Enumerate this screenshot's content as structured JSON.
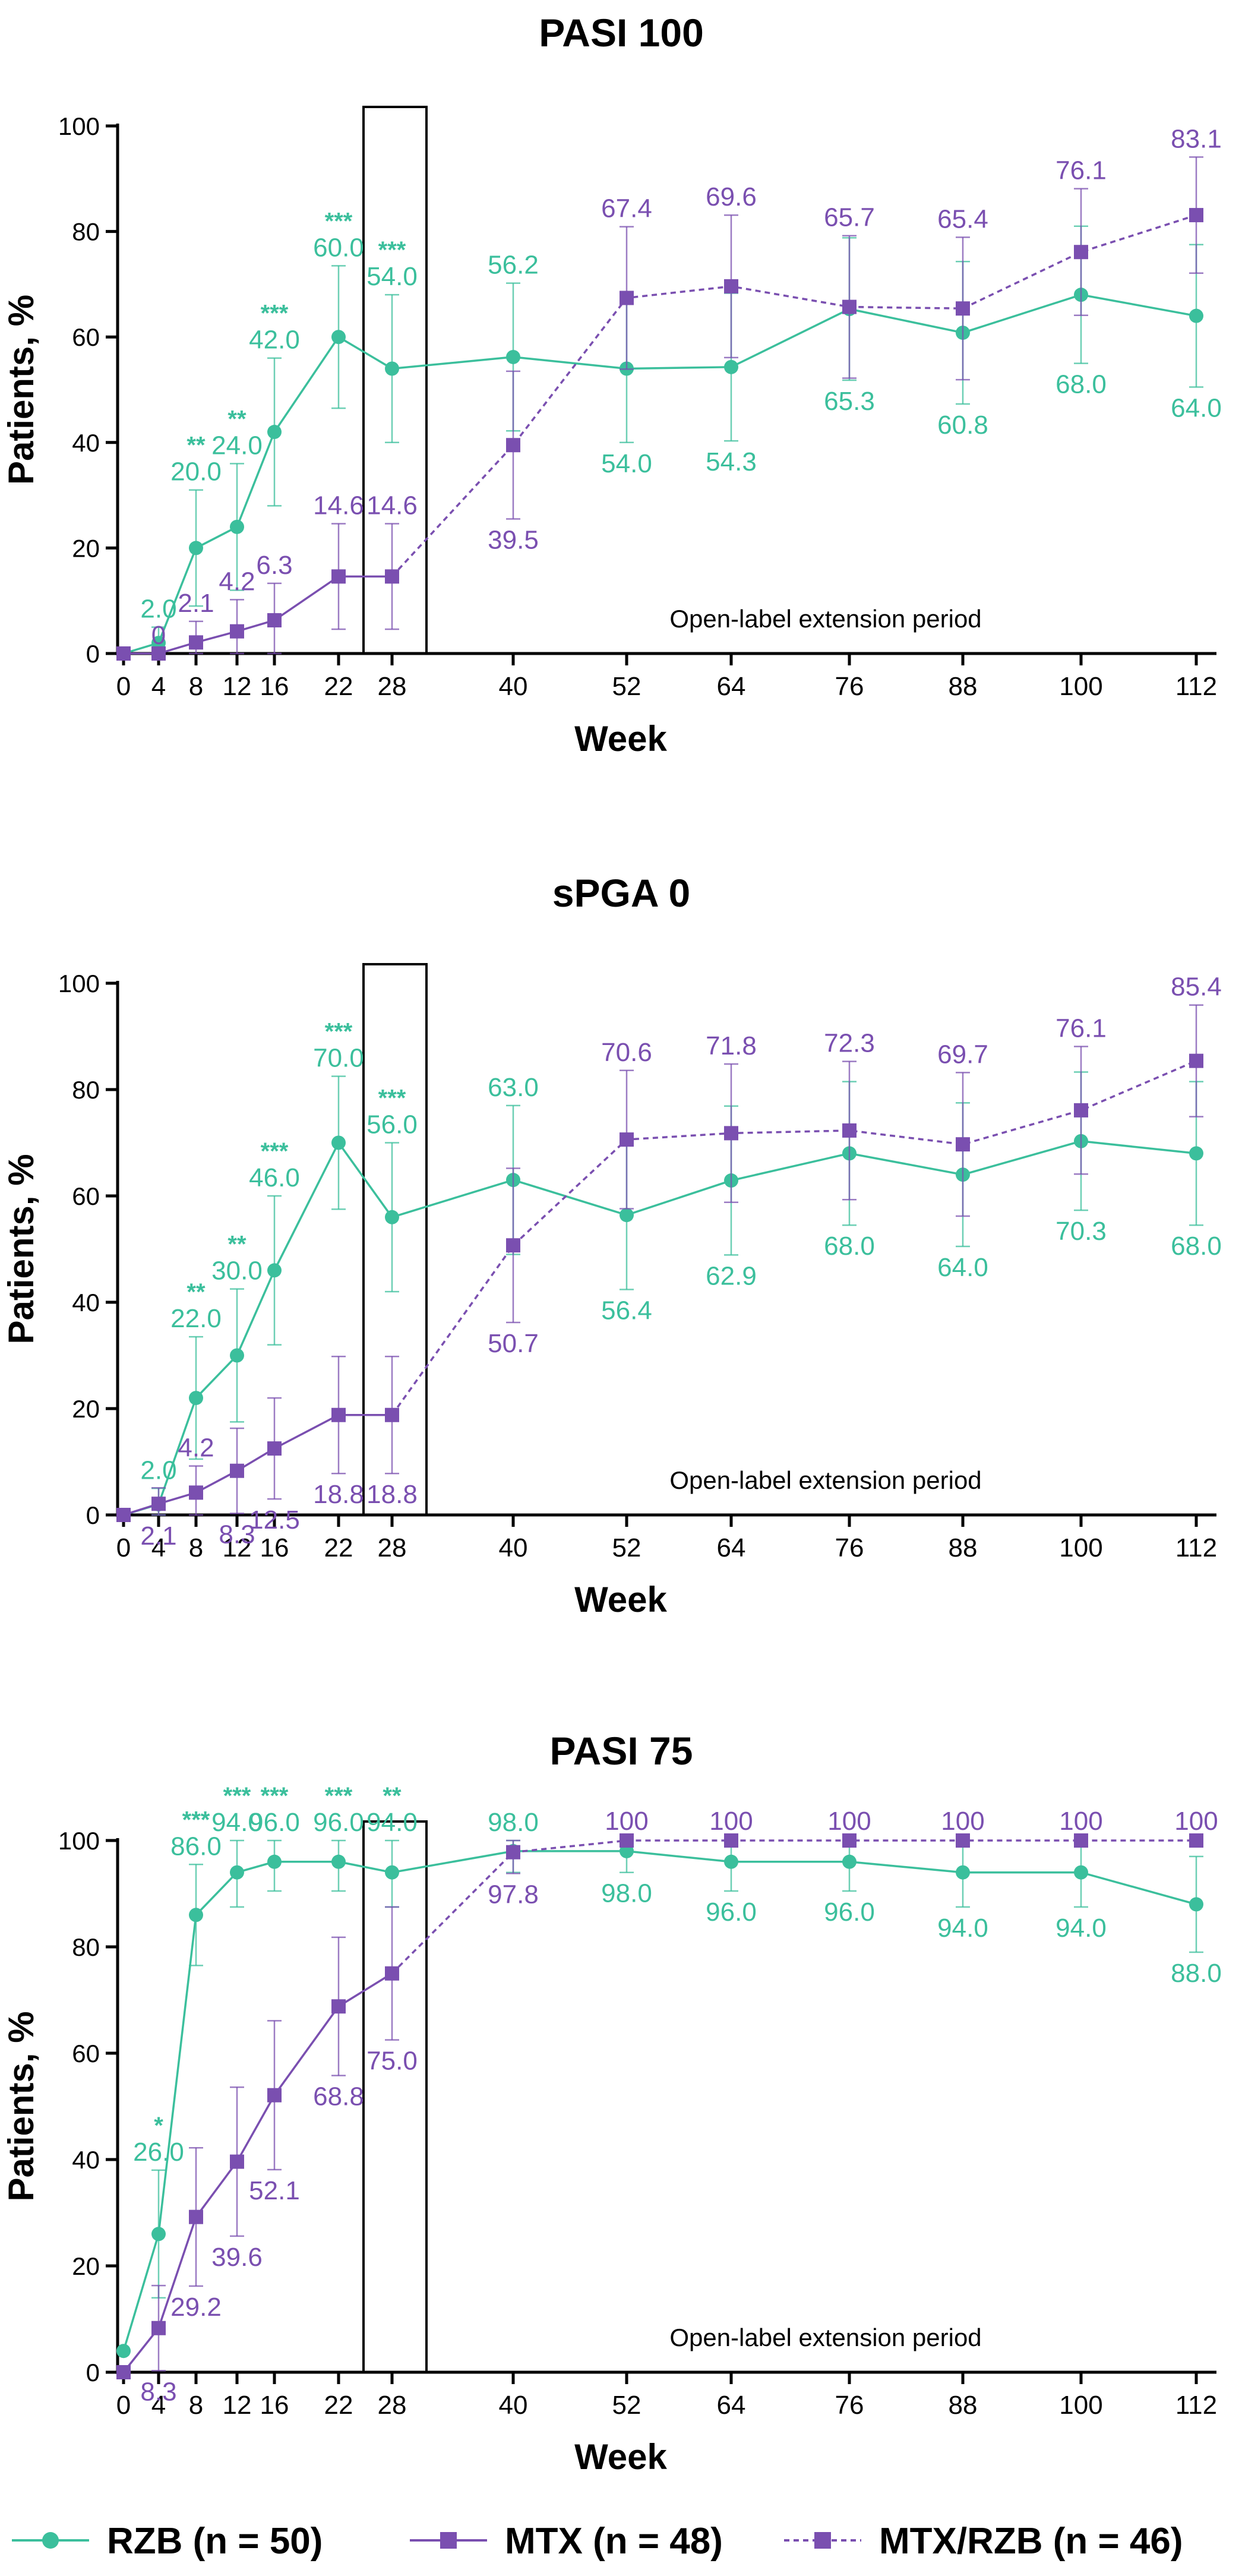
{
  "colors": {
    "rzb": "#3bbf9c",
    "mtx": "#7a4fb0",
    "axis": "#000000",
    "box": "#000000"
  },
  "legend": {
    "items": [
      {
        "label": "RZB (n = 50)",
        "series": "rzb",
        "style": "solid",
        "marker": "circle"
      },
      {
        "label": "MTX (n = 48)",
        "series": "mtx",
        "style": "solid",
        "marker": "square"
      },
      {
        "label": "MTX/RZB (n = 46)",
        "series": "mtx_rzb",
        "style": "dashed",
        "marker": "square"
      }
    ]
  },
  "chart_data": [
    {
      "type": "line",
      "title": "PASI 100",
      "xlabel": "Week",
      "ylabel": "Patients, %",
      "ylim": [
        0,
        100
      ],
      "yticks": [
        0,
        20,
        40,
        60,
        80,
        100
      ],
      "x": [
        0,
        4,
        8,
        12,
        16,
        22,
        28,
        40,
        52,
        64,
        76,
        88,
        100,
        112
      ],
      "x_tick_labels": [
        "0",
        "4",
        "8",
        "12",
        "16",
        "22",
        "28",
        "40",
        "52",
        "64",
        "76",
        "88",
        "100",
        "112"
      ],
      "annotation": "Open-label extension period",
      "series": [
        {
          "name": "RZB (n = 50)",
          "key": "rzb",
          "x": [
            0,
            4,
            8,
            12,
            16,
            22,
            28,
            40,
            52,
            64,
            76,
            88,
            100,
            112
          ],
          "values": [
            0,
            2.0,
            20.0,
            24.0,
            42.0,
            60.0,
            54.0,
            56.2,
            54.0,
            54.3,
            65.3,
            60.8,
            68.0,
            64.0
          ],
          "err": [
            0,
            3,
            11,
            12,
            14,
            13.5,
            14,
            14,
            14,
            14,
            13.5,
            13.5,
            13,
            13.5
          ],
          "labels": [
            "",
            "2.0",
            "20.0",
            "24.0",
            "42.0",
            "60.0",
            "54.0",
            "56.2",
            "54.0",
            "54.3",
            "65.3",
            "60.8",
            "68.0",
            "64.0"
          ],
          "label_pos": [
            "",
            "above",
            "above",
            "above",
            "above",
            "above",
            "above",
            "above",
            "below",
            "below",
            "below",
            "below",
            "below",
            "below"
          ],
          "sig": [
            "",
            "",
            "**",
            "**",
            "***",
            "***",
            "***",
            "",
            "",
            "",
            "",
            "",
            "",
            ""
          ]
        },
        {
          "name": "MTX (n = 48)",
          "key": "mtx",
          "x": [
            0,
            4,
            8,
            12,
            16,
            22,
            28
          ],
          "values": [
            0,
            0,
            2.1,
            4.2,
            6.3,
            14.6,
            14.6
          ],
          "err": [
            0,
            0,
            4,
            6,
            7,
            10,
            10
          ],
          "labels": [
            "",
            "0",
            "2.1",
            "4.2",
            "6.3",
            "14.6",
            "14.6"
          ],
          "label_pos": [
            "",
            "above",
            "above",
            "above",
            "above",
            "above",
            "above"
          ]
        },
        {
          "name": "MTX/RZB (n = 46)",
          "key": "mtx_rzb",
          "x": [
            28,
            40,
            52,
            64,
            76,
            88,
            100,
            112
          ],
          "values": [
            14.6,
            39.5,
            67.4,
            69.6,
            65.7,
            65.4,
            76.1,
            83.1
          ],
          "err": [
            0,
            14,
            13.5,
            13.5,
            13.5,
            13.5,
            12,
            11
          ],
          "labels": [
            "",
            "39.5",
            "67.4",
            "69.6",
            "65.7",
            "65.4",
            "76.1",
            "83.1"
          ],
          "label_pos": [
            "",
            "below",
            "above",
            "above",
            "above",
            "above",
            "above",
            "above"
          ]
        }
      ]
    },
    {
      "type": "line",
      "title": "sPGA 0",
      "xlabel": "Week",
      "ylabel": "Patients, %",
      "ylim": [
        0,
        100
      ],
      "yticks": [
        0,
        20,
        40,
        60,
        80,
        100
      ],
      "x": [
        0,
        4,
        8,
        12,
        16,
        22,
        28,
        40,
        52,
        64,
        76,
        88,
        100,
        112
      ],
      "x_tick_labels": [
        "0",
        "4",
        "8",
        "12",
        "16",
        "22",
        "28",
        "40",
        "52",
        "64",
        "76",
        "88",
        "100",
        "112"
      ],
      "annotation": "Open-label extension period",
      "series": [
        {
          "name": "RZB (n = 50)",
          "key": "rzb",
          "x": [
            0,
            4,
            8,
            12,
            16,
            22,
            28,
            40,
            52,
            64,
            76,
            88,
            100,
            112
          ],
          "values": [
            0,
            2.0,
            22.0,
            30.0,
            46.0,
            70.0,
            56.0,
            63.0,
            56.4,
            62.9,
            68.0,
            64.0,
            70.3,
            68.0
          ],
          "err": [
            0,
            3,
            11.5,
            12.5,
            14,
            12.5,
            14,
            14,
            14,
            14,
            13.5,
            13.5,
            13,
            13.5
          ],
          "labels": [
            "",
            "2.0",
            "22.0",
            "30.0",
            "46.0",
            "70.0",
            "56.0",
            "63.0",
            "56.4",
            "62.9",
            "68.0",
            "64.0",
            "70.3",
            "68.0"
          ],
          "label_pos": [
            "",
            "above",
            "above",
            "above",
            "above",
            "above",
            "above",
            "above",
            "below",
            "below",
            "below",
            "below",
            "below",
            "below"
          ],
          "sig": [
            "",
            "",
            "**",
            "**",
            "***",
            "***",
            "***",
            "",
            "",
            "",
            "",
            "",
            "",
            ""
          ]
        },
        {
          "name": "MTX (n = 48)",
          "key": "mtx",
          "x": [
            0,
            4,
            8,
            12,
            16,
            22,
            28
          ],
          "values": [
            0,
            2.1,
            4.2,
            8.3,
            12.5,
            18.8,
            18.8
          ],
          "err": [
            0,
            3,
            5,
            8,
            9.5,
            11,
            11
          ],
          "labels": [
            "",
            "2.1",
            "4.2",
            "8.3",
            "12.5",
            "18.8",
            "18.8"
          ],
          "label_pos": [
            "",
            "below",
            "above",
            "below",
            "below",
            "below",
            "below"
          ]
        },
        {
          "name": "MTX/RZB (n = 46)",
          "key": "mtx_rzb",
          "x": [
            28,
            40,
            52,
            64,
            76,
            88,
            100,
            112
          ],
          "values": [
            18.8,
            50.7,
            70.6,
            71.8,
            72.3,
            69.7,
            76.1,
            85.4
          ],
          "err": [
            0,
            14.5,
            13,
            13,
            13,
            13.5,
            12,
            10.5
          ],
          "labels": [
            "",
            "50.7",
            "70.6",
            "71.8",
            "72.3",
            "69.7",
            "76.1",
            "85.4"
          ],
          "label_pos": [
            "",
            "below",
            "above",
            "above",
            "above",
            "above",
            "above",
            "above"
          ]
        }
      ]
    },
    {
      "type": "line",
      "title": "PASI 75",
      "xlabel": "Week",
      "ylabel": "Patients, %",
      "ylim": [
        0,
        100
      ],
      "yticks": [
        0,
        20,
        40,
        60,
        80,
        100
      ],
      "x": [
        0,
        4,
        8,
        12,
        16,
        22,
        28,
        40,
        52,
        64,
        76,
        88,
        100,
        112
      ],
      "x_tick_labels": [
        "0",
        "4",
        "8",
        "12",
        "16",
        "22",
        "28",
        "40",
        "52",
        "64",
        "76",
        "88",
        "100",
        "112"
      ],
      "annotation": "Open-label extension period",
      "series": [
        {
          "name": "RZB (n = 50)",
          "key": "rzb",
          "x": [
            0,
            4,
            8,
            12,
            16,
            22,
            28,
            40,
            52,
            64,
            76,
            88,
            100,
            112
          ],
          "values": [
            4,
            26.0,
            86.0,
            94.0,
            96.0,
            96.0,
            94.0,
            98.0,
            98.0,
            96.0,
            96.0,
            94.0,
            94.0,
            88.0
          ],
          "err": [
            0,
            12,
            9.5,
            6.5,
            5.5,
            5.5,
            6.5,
            4,
            4,
            5.5,
            5.5,
            6.5,
            6.5,
            9
          ],
          "labels": [
            "",
            "26.0",
            "86.0",
            "94.0",
            "96.0",
            "96.0",
            "94.0",
            "98.0",
            "98.0",
            "96.0",
            "96.0",
            "94.0",
            "94.0",
            "88.0"
          ],
          "label_pos": [
            "",
            "above",
            "above",
            "above",
            "above",
            "above",
            "above",
            "above",
            "below",
            "below",
            "below",
            "below",
            "below",
            "below"
          ],
          "sig": [
            "",
            "*",
            "***",
            "***",
            "***",
            "***",
            "**",
            "",
            "",
            "",
            "",
            "",
            "",
            ""
          ]
        },
        {
          "name": "MTX (n = 48)",
          "key": "mtx",
          "x": [
            0,
            4,
            8,
            12,
            16,
            22,
            28
          ],
          "values": [
            0,
            8.3,
            29.2,
            39.6,
            52.1,
            68.8,
            75.0
          ],
          "err": [
            0,
            8,
            13,
            14,
            14,
            13,
            12.5
          ],
          "labels": [
            "",
            "8.3",
            "29.2",
            "39.6",
            "52.1",
            "68.8",
            "75.0"
          ],
          "label_pos": [
            "",
            "below",
            "below",
            "below",
            "below",
            "below",
            "below"
          ]
        },
        {
          "name": "MTX/RZB (n = 46)",
          "key": "mtx_rzb",
          "x": [
            28,
            40,
            52,
            64,
            76,
            88,
            100,
            112
          ],
          "values": [
            75.0,
            97.8,
            100,
            100,
            100,
            100,
            100,
            100
          ],
          "err": [
            0,
            4,
            0,
            0,
            0,
            0,
            0,
            0
          ],
          "labels": [
            "",
            "97.8",
            "100",
            "100",
            "100",
            "100",
            "100",
            "100"
          ],
          "label_pos": [
            "",
            "below",
            "above",
            "above",
            "above",
            "above",
            "above",
            "above"
          ]
        }
      ]
    }
  ]
}
